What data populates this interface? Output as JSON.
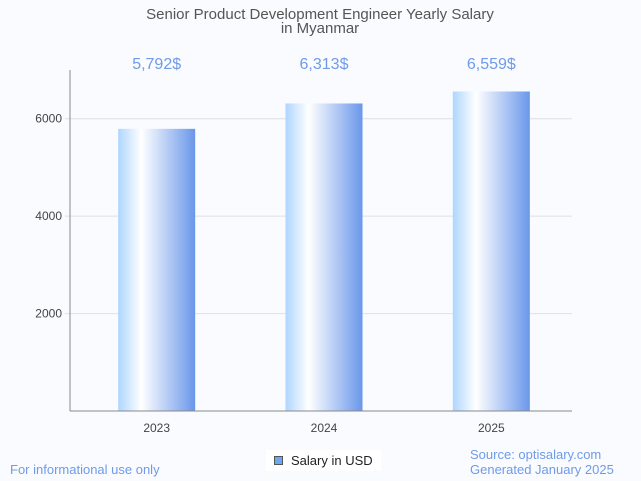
{
  "chart_data": {
    "type": "bar",
    "title": [
      "Senior Product Development Engineer Yearly Salary",
      "in Myanmar"
    ],
    "categories": [
      "2023",
      "2024",
      "2025"
    ],
    "values": [
      5792,
      6313,
      6559
    ],
    "data_labels": [
      "5,792$",
      "6,313$",
      "6,559$"
    ],
    "yticks": [
      2000,
      4000,
      6000
    ],
    "ylim": [
      0,
      7000
    ],
    "xlabel": "",
    "ylabel": "",
    "grid": true,
    "legend": {
      "label": "Salary in USD",
      "placement": "bottom-center"
    },
    "colors": {
      "bar_light": "#aed6ff",
      "bar_mid": "#ffffff",
      "bar_dark": "#6a97ea",
      "label": "#6f9be8"
    }
  },
  "footer": {
    "left": "For informational use only",
    "source": "Source: optisalary.com",
    "generated": "Generated January 2025"
  }
}
